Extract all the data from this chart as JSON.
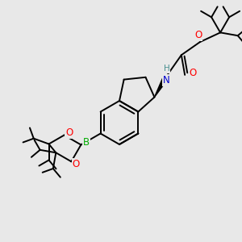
{
  "bg_color": "#e8e8e8",
  "atom_colors": {
    "C": "#000000",
    "H": "#4a9090",
    "N": "#0000cd",
    "O": "#ff0000",
    "B": "#00aa00"
  },
  "bond_color": "#000000",
  "bond_width": 1.4,
  "figsize": [
    3.0,
    3.0
  ],
  "dpi": 100,
  "scale": 100
}
